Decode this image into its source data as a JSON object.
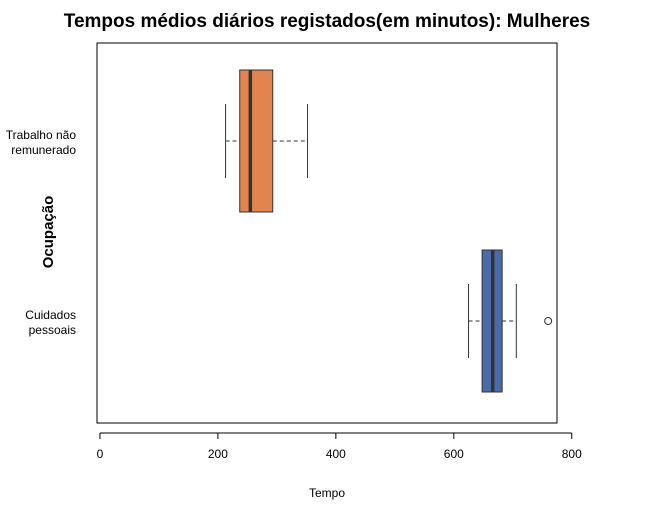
{
  "chart_data": {
    "type": "boxplot",
    "orientation": "horizontal",
    "title": "Tempos médios diários registados(em minutos): Mulheres",
    "xlabel": "Tempo",
    "ylabel": "Ocupação",
    "xlim": [
      -5,
      775
    ],
    "xticks": [
      0,
      200,
      400,
      600,
      800
    ],
    "categories": [
      {
        "label_lines": [
          "Trabalho não",
          "remunerado"
        ],
        "position": "top",
        "color": "#E2844F",
        "whisker_low": 213,
        "q1": 237,
        "median": 255,
        "q3": 293,
        "whisker_high": 352,
        "outliers": []
      },
      {
        "label_lines": [
          "Cuidados",
          "pessoais"
        ],
        "position": "bottom",
        "color": "#4A6AAA",
        "whisker_low": 625,
        "q1": 648,
        "median": 666,
        "q3": 682,
        "whisker_high": 706,
        "outliers": [
          760
        ]
      }
    ],
    "grid": false,
    "legend": "none"
  }
}
